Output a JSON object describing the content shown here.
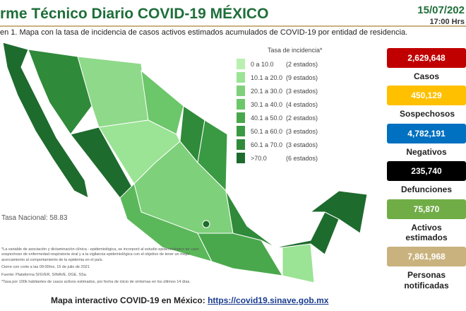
{
  "header": {
    "title": "rme Técnico Diario COVID-19 MÉXICO",
    "date": "15/07/202",
    "time": "17:00 Hrs"
  },
  "caption": "en 1. Mapa con la tasa de incidencia de casos activos estimados acumulados de COVID-19 por entidad de residencia.",
  "legend": {
    "title": "Tasa de incidencia*",
    "items": [
      {
        "range": "0  a  10.0",
        "count": "(2 estados)"
      },
      {
        "range": "10.1 a  20.0",
        "count": "(9 estados)"
      },
      {
        "range": "20.1 a  30.0",
        "count": "(3 estados)"
      },
      {
        "range": "30.1 a  40.0",
        "count": "(4 estados)"
      },
      {
        "range": "40.1 a  50.0",
        "count": "(2 estados)"
      },
      {
        "range": "50.1 a  60.0",
        "count": "(3 estados)"
      },
      {
        "range": "60.1 a  70.0",
        "count": "(3 estados)"
      },
      {
        "range": ">70.0",
        "count": "(6 estados)"
      }
    ]
  },
  "national_rate": "Tasa Nacional: 58.83",
  "footnotes": [
    "*La variable de asociación y dictaminación clínica - epidemiológica, se incorporó al estudio epidemiológico de caso sospechoso de enfermedad respiratoria viral y a la vigilancia epidemiológica con el objetivo de tener un mejor acercamiento al comportamiento de la epidemia en el país.",
    "Cierre con corte a las 09:00hrs, 15 de julio de 2021",
    "Fuente: Plataforma SISVER, SINAVE, DGE, SSa.",
    "*Tasa por 100k habitantes de casos activos estimados, por fecha de inicio de síntomas en los últimos 14 días."
  ],
  "stats": [
    {
      "value": "2,629,648",
      "label": "Casos"
    },
    {
      "value": "450,129",
      "label": "Sospechosos"
    },
    {
      "value": "4,782,191",
      "label": "Negativos"
    },
    {
      "value": "235,740",
      "label": "Defunciones"
    },
    {
      "value": "75,870",
      "label": "Activos estimados"
    },
    {
      "value": "7,861,968",
      "label": "Personas notificadas"
    }
  ],
  "footer": {
    "text": "Mapa interactivo COVID-19 en México: ",
    "link": "https://covid19.sinave.gob.mx"
  }
}
